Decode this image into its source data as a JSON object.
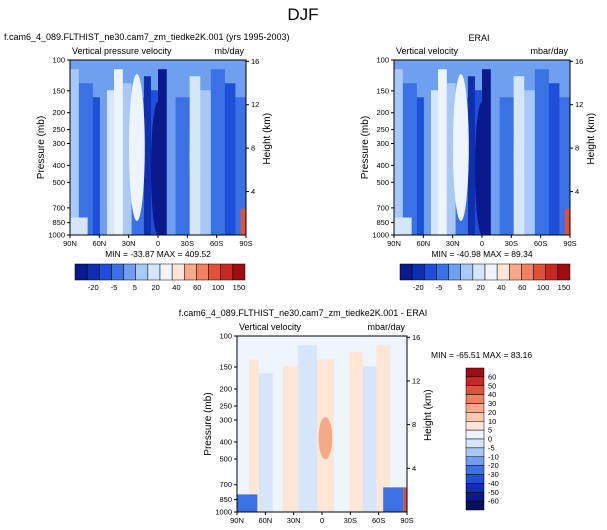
{
  "figure_title": "DJF",
  "colors": {
    "dark_navy": "#0a1a8c",
    "navy": "#0d2fb0",
    "blue": "#1f4fd8",
    "mid_blue": "#3a72e6",
    "light_blue": "#6fa0f0",
    "pale_blue": "#a8c8f5",
    "very_pale_blue": "#d6e6fa",
    "near_white": "#eef4fc",
    "pale_peach": "#fde6d6",
    "salmon": "#f4a989",
    "red": "#e0503a",
    "dark_red": "#9e0d12"
  },
  "chart_data": [
    {
      "type": "heatmap",
      "title": "f.cam6_4_089.FLTHIST_ne30.cam7_zm_tiedke2K.001 (yrs 1995-2003)",
      "field_label": "Vertical pressure velocity",
      "units": "mb/day",
      "ylabel": "Pressure (mb)",
      "ylabel_right": "Height (km)",
      "x_ticks": [
        "90N",
        "60N",
        "30N",
        "0",
        "30S",
        "60S",
        "90S"
      ],
      "y_ticks": [
        "100",
        "150",
        "200",
        "250",
        "300",
        "400",
        "500",
        "700",
        "850",
        "1000"
      ],
      "y_right_ticks": [
        "16",
        "12",
        "8",
        "4"
      ],
      "ylim": [
        1000,
        100
      ],
      "stats": "MIN = -33.87  MAX = 409.52",
      "colorbar_labels": [
        "-20",
        "-5",
        "5",
        "20",
        "40",
        "60",
        "100",
        "150"
      ]
    },
    {
      "type": "heatmap",
      "title": "ERAI",
      "field_label": "Vertical velocity",
      "units": "mbar/day",
      "ylabel": "Pressure (mb)",
      "ylabel_right": "Height (km)",
      "x_ticks": [
        "90N",
        "60N",
        "30N",
        "0",
        "30S",
        "60S",
        "90S"
      ],
      "y_ticks": [
        "100",
        "150",
        "200",
        "250",
        "300",
        "400",
        "500",
        "700",
        "850",
        "1000"
      ],
      "y_right_ticks": [
        "16",
        "12",
        "8",
        "4"
      ],
      "ylim": [
        1000,
        100
      ],
      "stats": "MIN = -40.98  MAX = 89.34",
      "colorbar_labels": [
        "-20",
        "-5",
        "5",
        "20",
        "40",
        "60",
        "100",
        "150"
      ]
    },
    {
      "type": "heatmap",
      "title": "f.cam6_4_089.FLTHIST_ne30.cam7_zm_tiedke2K.001 - ERAI",
      "field_label": "Vertical velocity",
      "units": "mbar/day",
      "ylabel": "Pressure (mb)",
      "ylabel_right": "Height (km)",
      "x_ticks": [
        "90N",
        "60N",
        "30N",
        "0",
        "30S",
        "60S",
        "90S"
      ],
      "y_ticks": [
        "100",
        "150",
        "200",
        "250",
        "300",
        "400",
        "500",
        "700",
        "850",
        "1000"
      ],
      "y_right_ticks": [
        "16",
        "12",
        "8",
        "4"
      ],
      "ylim": [
        1000,
        100
      ],
      "stats": "MIN = -65.51  MAX = 83.16",
      "colorbar_labels": [
        "60",
        "50",
        "40",
        "30",
        "20",
        "10",
        "5",
        "0",
        "-5",
        "-10",
        "-20",
        "-30",
        "-40",
        "-50",
        "-60"
      ]
    }
  ]
}
